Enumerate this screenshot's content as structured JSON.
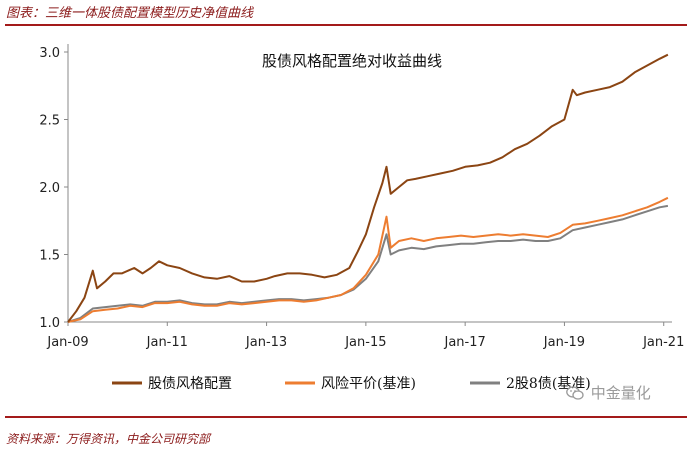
{
  "header": {
    "figure_title": "图表：三维一体股债配置模型历史净值曲线"
  },
  "footer": {
    "source": "资料来源：万得资讯，中金公司研究部"
  },
  "watermark": {
    "text": "中金量化",
    "icon": "wechat-icon"
  },
  "chart_data": {
    "type": "line",
    "title": "股债风格配置绝对收益曲线",
    "xlabel": "",
    "ylabel": "",
    "x_ticks": [
      "Jan-09",
      "Jan-11",
      "Jan-13",
      "Jan-15",
      "Jan-17",
      "Jan-19",
      "Jan-21"
    ],
    "y_ticks": [
      "1.0",
      "1.5",
      "2.0",
      "2.5",
      "3.0"
    ],
    "xlim": [
      "2009-01",
      "2021-03"
    ],
    "ylim": [
      1.0,
      3.0
    ],
    "grid": false,
    "legend_position": "bottom",
    "series": [
      {
        "name": "股债风格配置",
        "color": "#8b4513",
        "points": [
          [
            "2009-01",
            1.0
          ],
          [
            "2009-03",
            1.08
          ],
          [
            "2009-05",
            1.18
          ],
          [
            "2009-07",
            1.38
          ],
          [
            "2009-08",
            1.25
          ],
          [
            "2009-10",
            1.3
          ],
          [
            "2009-12",
            1.36
          ],
          [
            "2010-02",
            1.36
          ],
          [
            "2010-05",
            1.4
          ],
          [
            "2010-07",
            1.36
          ],
          [
            "2010-09",
            1.4
          ],
          [
            "2010-11",
            1.45
          ],
          [
            "2011-01",
            1.42
          ],
          [
            "2011-04",
            1.4
          ],
          [
            "2011-07",
            1.36
          ],
          [
            "2011-10",
            1.33
          ],
          [
            "2012-01",
            1.32
          ],
          [
            "2012-04",
            1.34
          ],
          [
            "2012-07",
            1.3
          ],
          [
            "2012-10",
            1.3
          ],
          [
            "2013-01",
            1.32
          ],
          [
            "2013-03",
            1.34
          ],
          [
            "2013-06",
            1.36
          ],
          [
            "2013-09",
            1.36
          ],
          [
            "2013-12",
            1.35
          ],
          [
            "2014-03",
            1.33
          ],
          [
            "2014-06",
            1.35
          ],
          [
            "2014-09",
            1.4
          ],
          [
            "2014-11",
            1.52
          ],
          [
            "2015-01",
            1.65
          ],
          [
            "2015-03",
            1.85
          ],
          [
            "2015-05",
            2.03
          ],
          [
            "2015-06",
            2.15
          ],
          [
            "2015-07",
            1.95
          ],
          [
            "2015-09",
            2.0
          ],
          [
            "2015-11",
            2.05
          ],
          [
            "2016-01",
            2.06
          ],
          [
            "2016-04",
            2.08
          ],
          [
            "2016-07",
            2.1
          ],
          [
            "2016-10",
            2.12
          ],
          [
            "2017-01",
            2.15
          ],
          [
            "2017-04",
            2.16
          ],
          [
            "2017-07",
            2.18
          ],
          [
            "2017-10",
            2.22
          ],
          [
            "2018-01",
            2.28
          ],
          [
            "2018-04",
            2.32
          ],
          [
            "2018-07",
            2.38
          ],
          [
            "2018-10",
            2.45
          ],
          [
            "2019-01",
            2.5
          ],
          [
            "2019-03",
            2.72
          ],
          [
            "2019-04",
            2.68
          ],
          [
            "2019-06",
            2.7
          ],
          [
            "2019-09",
            2.72
          ],
          [
            "2019-12",
            2.74
          ],
          [
            "2020-03",
            2.78
          ],
          [
            "2020-06",
            2.85
          ],
          [
            "2020-09",
            2.9
          ],
          [
            "2020-12",
            2.95
          ],
          [
            "2021-02",
            2.98
          ]
        ]
      },
      {
        "name": "风险平价(基准)",
        "color": "#ed7d31",
        "points": [
          [
            "2009-01",
            1.0
          ],
          [
            "2009-04",
            1.02
          ],
          [
            "2009-07",
            1.08
          ],
          [
            "2009-10",
            1.09
          ],
          [
            "2010-01",
            1.1
          ],
          [
            "2010-04",
            1.12
          ],
          [
            "2010-07",
            1.11
          ],
          [
            "2010-10",
            1.14
          ],
          [
            "2011-01",
            1.14
          ],
          [
            "2011-04",
            1.15
          ],
          [
            "2011-07",
            1.13
          ],
          [
            "2011-10",
            1.12
          ],
          [
            "2012-01",
            1.12
          ],
          [
            "2012-04",
            1.14
          ],
          [
            "2012-07",
            1.13
          ],
          [
            "2012-10",
            1.14
          ],
          [
            "2013-01",
            1.15
          ],
          [
            "2013-04",
            1.16
          ],
          [
            "2013-07",
            1.16
          ],
          [
            "2013-10",
            1.15
          ],
          [
            "2014-01",
            1.16
          ],
          [
            "2014-04",
            1.18
          ],
          [
            "2014-07",
            1.2
          ],
          [
            "2014-10",
            1.25
          ],
          [
            "2015-01",
            1.35
          ],
          [
            "2015-04",
            1.5
          ],
          [
            "2015-06",
            1.78
          ],
          [
            "2015-07",
            1.55
          ],
          [
            "2015-09",
            1.6
          ],
          [
            "2015-12",
            1.62
          ],
          [
            "2016-03",
            1.6
          ],
          [
            "2016-06",
            1.62
          ],
          [
            "2016-09",
            1.63
          ],
          [
            "2016-12",
            1.64
          ],
          [
            "2017-03",
            1.63
          ],
          [
            "2017-06",
            1.64
          ],
          [
            "2017-09",
            1.65
          ],
          [
            "2017-12",
            1.64
          ],
          [
            "2018-03",
            1.65
          ],
          [
            "2018-06",
            1.64
          ],
          [
            "2018-09",
            1.63
          ],
          [
            "2018-12",
            1.66
          ],
          [
            "2019-03",
            1.72
          ],
          [
            "2019-06",
            1.73
          ],
          [
            "2019-09",
            1.75
          ],
          [
            "2019-12",
            1.77
          ],
          [
            "2020-03",
            1.79
          ],
          [
            "2020-06",
            1.82
          ],
          [
            "2020-09",
            1.85
          ],
          [
            "2020-12",
            1.89
          ],
          [
            "2021-02",
            1.92
          ]
        ]
      },
      {
        "name": "2股8债(基准)",
        "color": "#808080",
        "points": [
          [
            "2009-01",
            1.0
          ],
          [
            "2009-04",
            1.03
          ],
          [
            "2009-07",
            1.1
          ],
          [
            "2009-10",
            1.11
          ],
          [
            "2010-01",
            1.12
          ],
          [
            "2010-04",
            1.13
          ],
          [
            "2010-07",
            1.12
          ],
          [
            "2010-10",
            1.15
          ],
          [
            "2011-01",
            1.15
          ],
          [
            "2011-04",
            1.16
          ],
          [
            "2011-07",
            1.14
          ],
          [
            "2011-10",
            1.13
          ],
          [
            "2012-01",
            1.13
          ],
          [
            "2012-04",
            1.15
          ],
          [
            "2012-07",
            1.14
          ],
          [
            "2012-10",
            1.15
          ],
          [
            "2013-01",
            1.16
          ],
          [
            "2013-04",
            1.17
          ],
          [
            "2013-07",
            1.17
          ],
          [
            "2013-10",
            1.16
          ],
          [
            "2014-01",
            1.17
          ],
          [
            "2014-04",
            1.18
          ],
          [
            "2014-07",
            1.2
          ],
          [
            "2014-10",
            1.24
          ],
          [
            "2015-01",
            1.32
          ],
          [
            "2015-04",
            1.45
          ],
          [
            "2015-06",
            1.65
          ],
          [
            "2015-07",
            1.5
          ],
          [
            "2015-09",
            1.53
          ],
          [
            "2015-12",
            1.55
          ],
          [
            "2016-03",
            1.54
          ],
          [
            "2016-06",
            1.56
          ],
          [
            "2016-09",
            1.57
          ],
          [
            "2016-12",
            1.58
          ],
          [
            "2017-03",
            1.58
          ],
          [
            "2017-06",
            1.59
          ],
          [
            "2017-09",
            1.6
          ],
          [
            "2017-12",
            1.6
          ],
          [
            "2018-03",
            1.61
          ],
          [
            "2018-06",
            1.6
          ],
          [
            "2018-09",
            1.6
          ],
          [
            "2018-12",
            1.62
          ],
          [
            "2019-03",
            1.68
          ],
          [
            "2019-06",
            1.7
          ],
          [
            "2019-09",
            1.72
          ],
          [
            "2019-12",
            1.74
          ],
          [
            "2020-03",
            1.76
          ],
          [
            "2020-06",
            1.79
          ],
          [
            "2020-09",
            1.82
          ],
          [
            "2020-12",
            1.85
          ],
          [
            "2021-02",
            1.86
          ]
        ]
      }
    ]
  }
}
